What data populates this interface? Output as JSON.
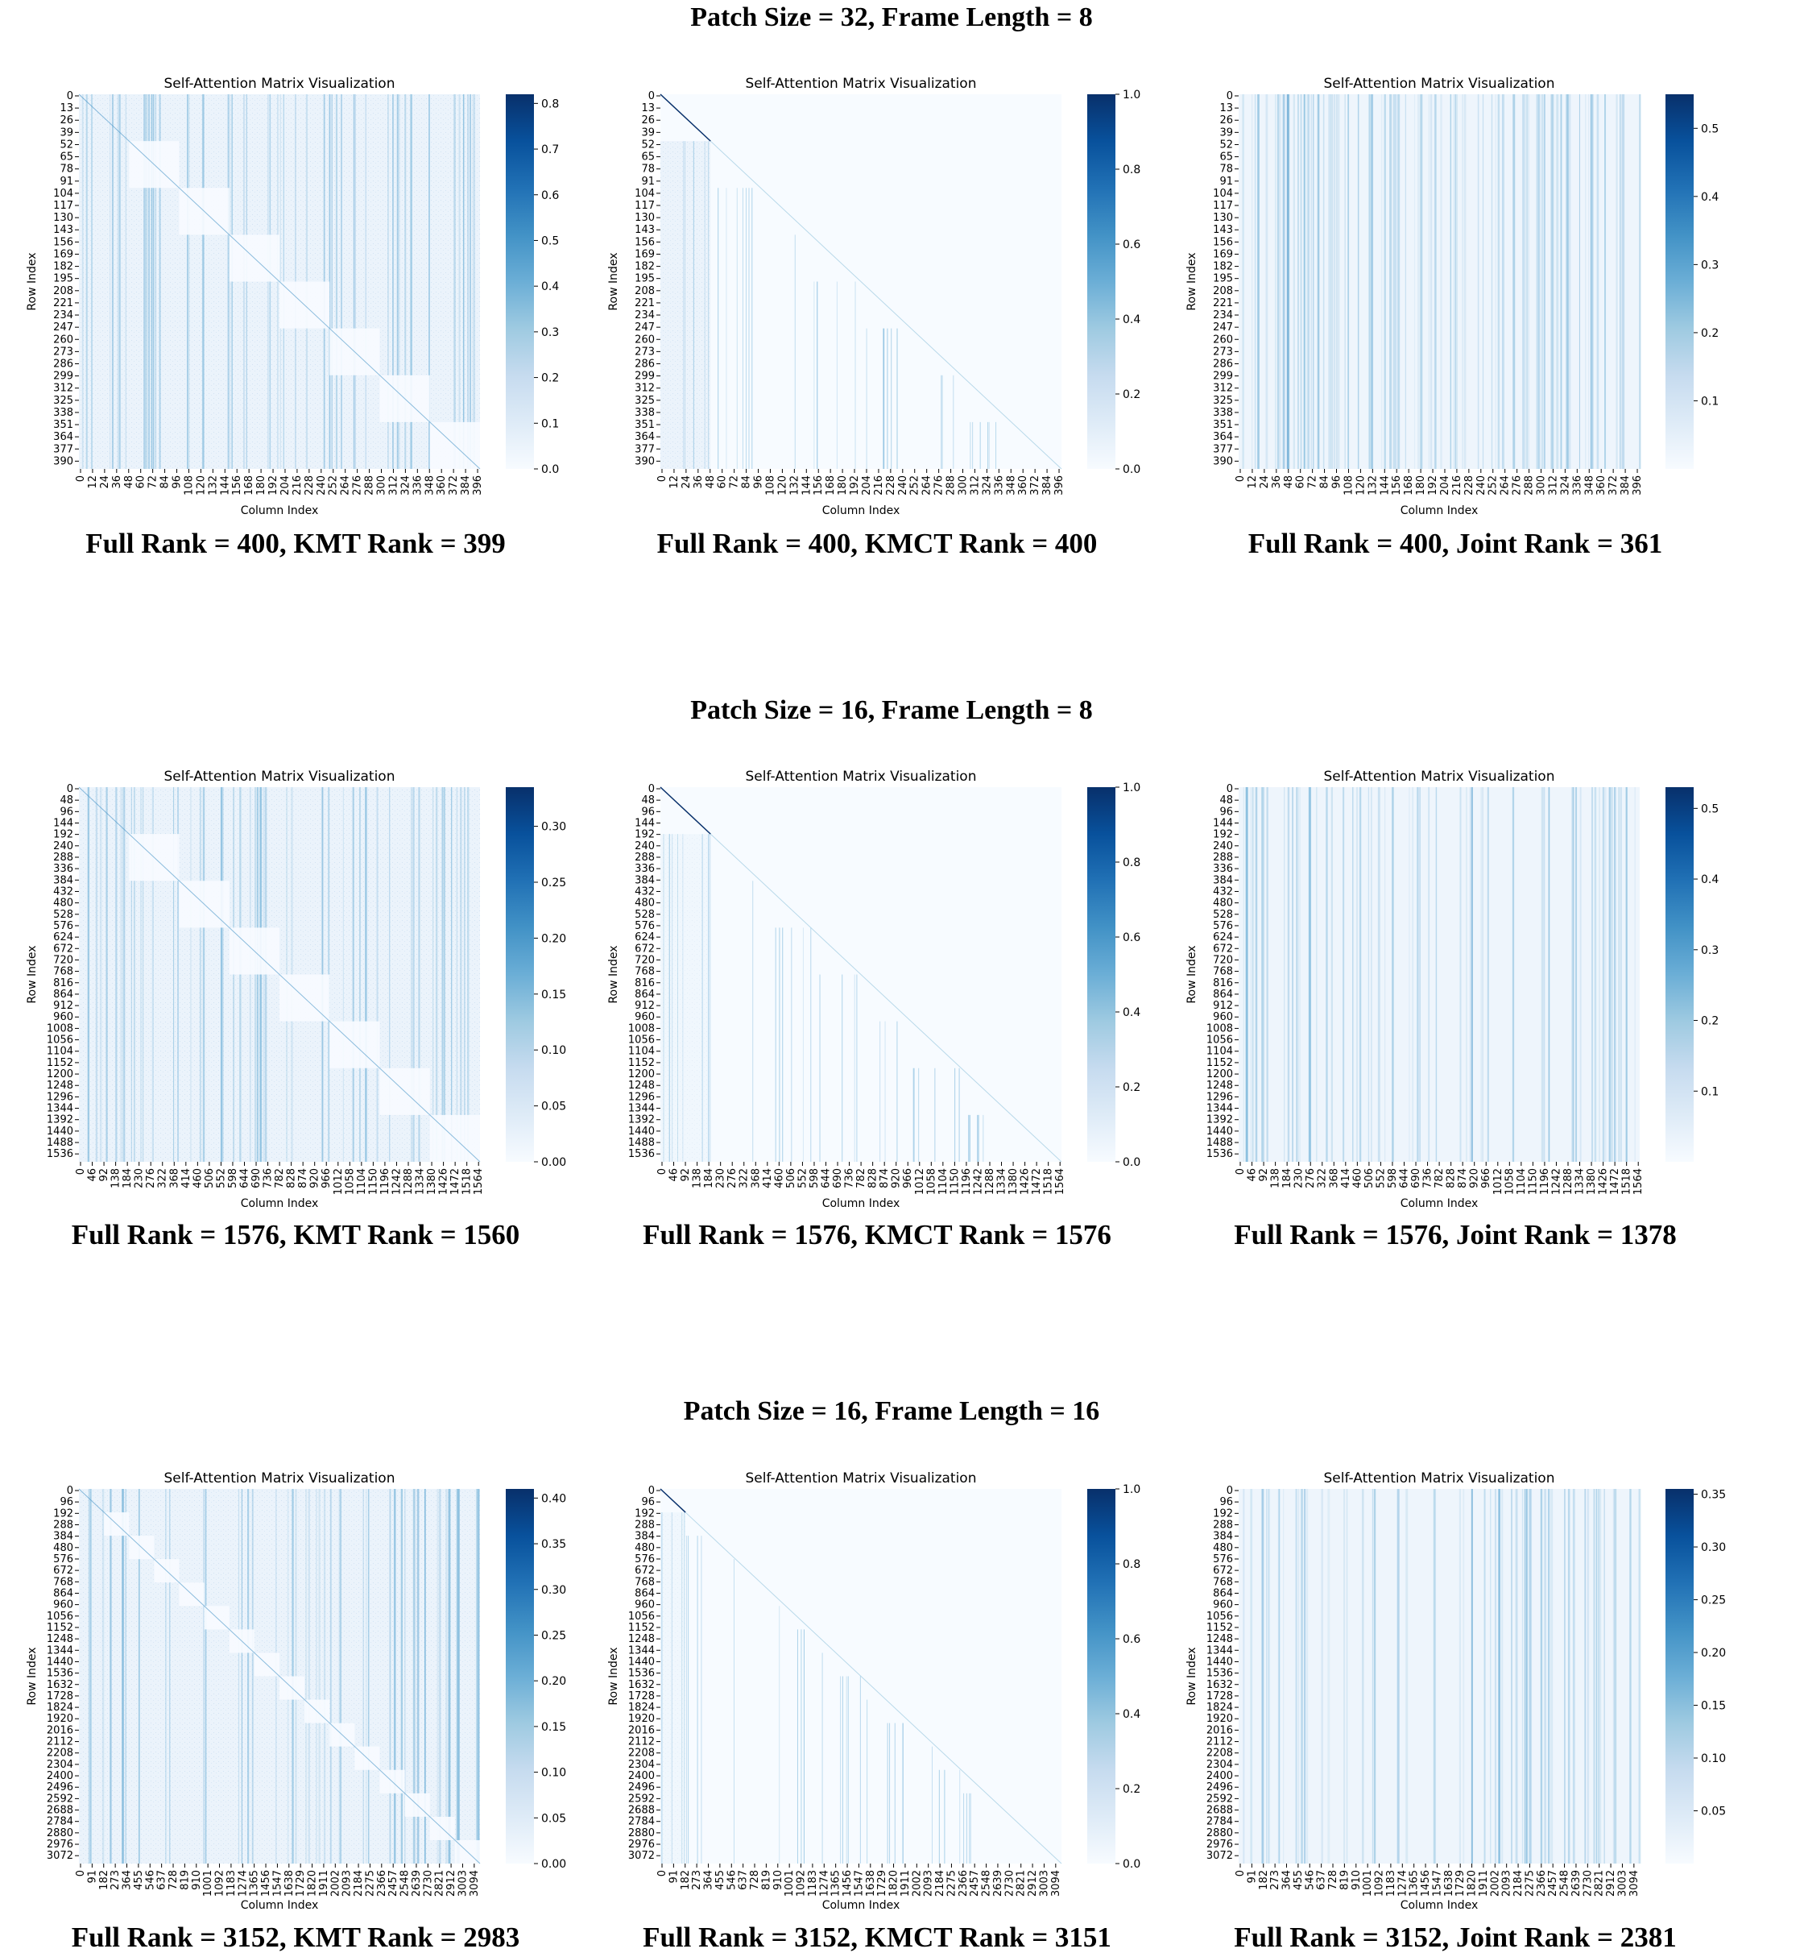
{
  "row_titles": [
    "Patch Size = 32, Frame Length = 8",
    "Patch Size = 16, Frame Length = 8",
    "Patch Size = 16, Frame Length = 16"
  ],
  "chart_data": [
    {
      "type": "heatmap",
      "row": 0,
      "col": 0,
      "pattern": "kmt",
      "n": 400,
      "title": "Self-Attention Matrix Visualization",
      "xlabel": "Column Index",
      "ylabel": "Row Index",
      "caption": "Full Rank = 400, KMT Rank = 399",
      "colorbar": {
        "min": 0,
        "max": 0.82,
        "ticks": [
          "0.0",
          "0.1",
          "0.2",
          "0.3",
          "0.4",
          "0.5",
          "0.6",
          "0.7",
          "0.8"
        ],
        "tick_values": [
          0,
          0.1,
          0.2,
          0.3,
          0.4,
          0.5,
          0.6,
          0.7,
          0.8
        ]
      },
      "yticks": [
        "0",
        "13",
        "26",
        "39",
        "52",
        "65",
        "78",
        "91",
        "104",
        "117",
        "130",
        "143",
        "156",
        "169",
        "182",
        "195",
        "208",
        "221",
        "234",
        "247",
        "260",
        "273",
        "286",
        "299",
        "312",
        "325",
        "338",
        "351",
        "364",
        "377",
        "390"
      ],
      "xticks": [
        "0",
        "12",
        "24",
        "36",
        "48",
        "60",
        "72",
        "84",
        "96",
        "108",
        "120",
        "132",
        "144",
        "156",
        "168",
        "180",
        "192",
        "204",
        "216",
        "228",
        "240",
        "252",
        "264",
        "276",
        "288",
        "300",
        "312",
        "324",
        "336",
        "348",
        "360",
        "372",
        "384",
        "396"
      ]
    },
    {
      "type": "heatmap",
      "row": 0,
      "col": 1,
      "pattern": "kmct",
      "n": 400,
      "title": "Self-Attention Matrix Visualization",
      "xlabel": "Column Index",
      "ylabel": "Row Index",
      "caption": "Full Rank = 400, KMCT Rank = 400",
      "colorbar": {
        "min": 0,
        "max": 1.0,
        "ticks": [
          "0.0",
          "0.2",
          "0.4",
          "0.6",
          "0.8",
          "1.0"
        ],
        "tick_values": [
          0,
          0.2,
          0.4,
          0.6,
          0.8,
          1.0
        ]
      },
      "yticks": [
        "0",
        "13",
        "26",
        "39",
        "52",
        "65",
        "78",
        "91",
        "104",
        "117",
        "130",
        "143",
        "156",
        "169",
        "182",
        "195",
        "208",
        "221",
        "234",
        "247",
        "260",
        "273",
        "286",
        "299",
        "312",
        "325",
        "338",
        "351",
        "364",
        "377",
        "390"
      ],
      "xticks": [
        "0",
        "12",
        "24",
        "36",
        "48",
        "60",
        "72",
        "84",
        "96",
        "108",
        "120",
        "132",
        "144",
        "156",
        "168",
        "180",
        "192",
        "204",
        "216",
        "228",
        "240",
        "252",
        "264",
        "276",
        "288",
        "300",
        "312",
        "324",
        "336",
        "348",
        "360",
        "372",
        "384",
        "396"
      ]
    },
    {
      "type": "heatmap",
      "row": 0,
      "col": 2,
      "pattern": "joint",
      "n": 400,
      "title": "Self-Attention Matrix Visualization",
      "xlabel": "Column Index",
      "ylabel": "Row Index",
      "caption": "Full Rank = 400, Joint Rank = 361",
      "colorbar": {
        "min": 0,
        "max": 0.55,
        "ticks": [
          "0.1",
          "0.2",
          "0.3",
          "0.4",
          "0.5"
        ],
        "tick_values": [
          0.1,
          0.2,
          0.3,
          0.4,
          0.5
        ]
      },
      "yticks": [
        "0",
        "13",
        "26",
        "39",
        "52",
        "65",
        "78",
        "91",
        "104",
        "117",
        "130",
        "143",
        "156",
        "169",
        "182",
        "195",
        "208",
        "221",
        "234",
        "247",
        "260",
        "273",
        "286",
        "299",
        "312",
        "325",
        "338",
        "351",
        "364",
        "377",
        "390"
      ],
      "xticks": [
        "0",
        "12",
        "24",
        "36",
        "48",
        "60",
        "72",
        "84",
        "96",
        "108",
        "120",
        "132",
        "144",
        "156",
        "168",
        "180",
        "192",
        "204",
        "216",
        "228",
        "240",
        "252",
        "264",
        "276",
        "288",
        "300",
        "312",
        "324",
        "336",
        "348",
        "360",
        "372",
        "384",
        "396"
      ]
    },
    {
      "type": "heatmap",
      "row": 1,
      "col": 0,
      "pattern": "kmt",
      "n": 1576,
      "title": "Self-Attention Matrix Visualization",
      "xlabel": "Column Index",
      "ylabel": "Row Index",
      "caption": "Full Rank = 1576, KMT Rank = 1560",
      "colorbar": {
        "min": 0,
        "max": 0.335,
        "ticks": [
          "0.00",
          "0.05",
          "0.10",
          "0.15",
          "0.20",
          "0.25",
          "0.30"
        ],
        "tick_values": [
          0,
          0.05,
          0.1,
          0.15,
          0.2,
          0.25,
          0.3
        ]
      },
      "yticks": [
        "0",
        "48",
        "96",
        "144",
        "192",
        "240",
        "288",
        "336",
        "384",
        "432",
        "480",
        "528",
        "576",
        "624",
        "672",
        "720",
        "768",
        "816",
        "864",
        "912",
        "960",
        "1008",
        "1056",
        "1104",
        "1152",
        "1200",
        "1248",
        "1296",
        "1344",
        "1392",
        "1440",
        "1488",
        "1536"
      ],
      "xticks": [
        "0",
        "46",
        "92",
        "138",
        "184",
        "230",
        "276",
        "322",
        "368",
        "414",
        "460",
        "506",
        "552",
        "598",
        "644",
        "690",
        "736",
        "782",
        "828",
        "874",
        "920",
        "966",
        "1012",
        "1058",
        "1104",
        "1150",
        "1196",
        "1242",
        "1288",
        "1334",
        "1380",
        "1426",
        "1472",
        "1518",
        "1564"
      ]
    },
    {
      "type": "heatmap",
      "row": 1,
      "col": 1,
      "pattern": "kmct",
      "n": 1576,
      "title": "Self-Attention Matrix Visualization",
      "xlabel": "Column Index",
      "ylabel": "Row Index",
      "caption": "Full Rank = 1576, KMCT Rank = 1576",
      "colorbar": {
        "min": 0,
        "max": 1.0,
        "ticks": [
          "0.0",
          "0.2",
          "0.4",
          "0.6",
          "0.8",
          "1.0"
        ],
        "tick_values": [
          0,
          0.2,
          0.4,
          0.6,
          0.8,
          1.0
        ]
      },
      "yticks": [
        "0",
        "48",
        "96",
        "144",
        "192",
        "240",
        "288",
        "336",
        "384",
        "432",
        "480",
        "528",
        "576",
        "624",
        "672",
        "720",
        "768",
        "816",
        "864",
        "912",
        "960",
        "1008",
        "1056",
        "1104",
        "1152",
        "1200",
        "1248",
        "1296",
        "1344",
        "1392",
        "1440",
        "1488",
        "1536"
      ],
      "xticks": [
        "0",
        "46",
        "92",
        "138",
        "184",
        "230",
        "276",
        "322",
        "368",
        "414",
        "460",
        "506",
        "552",
        "598",
        "644",
        "690",
        "736",
        "782",
        "828",
        "874",
        "920",
        "966",
        "1012",
        "1058",
        "1104",
        "1150",
        "1196",
        "1242",
        "1288",
        "1334",
        "1380",
        "1426",
        "1472",
        "1518",
        "1564"
      ]
    },
    {
      "type": "heatmap",
      "row": 1,
      "col": 2,
      "pattern": "joint",
      "n": 1576,
      "title": "Self-Attention Matrix Visualization",
      "xlabel": "Column Index",
      "ylabel": "Row Index",
      "caption": "Full Rank = 1576, Joint Rank = 1378",
      "colorbar": {
        "min": 0,
        "max": 0.53,
        "ticks": [
          "0.1",
          "0.2",
          "0.3",
          "0.4",
          "0.5"
        ],
        "tick_values": [
          0.1,
          0.2,
          0.3,
          0.4,
          0.5
        ]
      },
      "yticks": [
        "0",
        "48",
        "96",
        "144",
        "192",
        "240",
        "288",
        "336",
        "384",
        "432",
        "480",
        "528",
        "576",
        "624",
        "672",
        "720",
        "768",
        "816",
        "864",
        "912",
        "960",
        "1008",
        "1056",
        "1104",
        "1152",
        "1200",
        "1248",
        "1296",
        "1344",
        "1392",
        "1440",
        "1488",
        "1536"
      ],
      "xticks": [
        "0",
        "46",
        "92",
        "138",
        "184",
        "230",
        "276",
        "322",
        "368",
        "414",
        "460",
        "506",
        "552",
        "598",
        "644",
        "690",
        "736",
        "782",
        "828",
        "874",
        "920",
        "966",
        "1012",
        "1058",
        "1104",
        "1150",
        "1196",
        "1242",
        "1288",
        "1334",
        "1380",
        "1426",
        "1472",
        "1518",
        "1564"
      ]
    },
    {
      "type": "heatmap",
      "row": 2,
      "col": 0,
      "pattern": "kmt",
      "n": 3152,
      "title": "Self-Attention Matrix Visualization",
      "xlabel": "Column Index",
      "ylabel": "Row Index",
      "caption": "Full Rank = 3152, KMT Rank = 2983",
      "colorbar": {
        "min": 0,
        "max": 0.41,
        "ticks": [
          "0.00",
          "0.05",
          "0.10",
          "0.15",
          "0.20",
          "0.25",
          "0.30",
          "0.35",
          "0.40"
        ],
        "tick_values": [
          0,
          0.05,
          0.1,
          0.15,
          0.2,
          0.25,
          0.3,
          0.35,
          0.4
        ]
      },
      "yticks": [
        "0",
        "96",
        "192",
        "288",
        "384",
        "480",
        "576",
        "672",
        "768",
        "864",
        "960",
        "1056",
        "1152",
        "1248",
        "1344",
        "1440",
        "1536",
        "1632",
        "1728",
        "1824",
        "1920",
        "2016",
        "2112",
        "2208",
        "2304",
        "2400",
        "2496",
        "2592",
        "2688",
        "2784",
        "2880",
        "2976",
        "3072"
      ],
      "xticks": [
        "0",
        "91",
        "182",
        "273",
        "364",
        "455",
        "546",
        "637",
        "728",
        "819",
        "910",
        "1001",
        "1092",
        "1183",
        "1274",
        "1365",
        "1456",
        "1547",
        "1638",
        "1729",
        "1820",
        "1911",
        "2002",
        "2093",
        "2184",
        "2275",
        "2366",
        "2457",
        "2548",
        "2639",
        "2730",
        "2821",
        "2912",
        "3003",
        "3094"
      ]
    },
    {
      "type": "heatmap",
      "row": 2,
      "col": 1,
      "pattern": "kmct",
      "n": 3152,
      "title": "Self-Attention Matrix Visualization",
      "xlabel": "Column Index",
      "ylabel": "Row Index",
      "caption": "Full Rank = 3152, KMCT Rank = 3151",
      "colorbar": {
        "min": 0,
        "max": 1.0,
        "ticks": [
          "0.0",
          "0.2",
          "0.4",
          "0.6",
          "0.8",
          "1.0"
        ],
        "tick_values": [
          0,
          0.2,
          0.4,
          0.6,
          0.8,
          1.0
        ]
      },
      "yticks": [
        "0",
        "96",
        "192",
        "288",
        "384",
        "480",
        "576",
        "672",
        "768",
        "864",
        "960",
        "1056",
        "1152",
        "1248",
        "1344",
        "1440",
        "1536",
        "1632",
        "1728",
        "1824",
        "1920",
        "2016",
        "2112",
        "2208",
        "2304",
        "2400",
        "2496",
        "2592",
        "2688",
        "2784",
        "2880",
        "2976",
        "3072"
      ],
      "xticks": [
        "0",
        "91",
        "182",
        "273",
        "364",
        "455",
        "546",
        "637",
        "728",
        "819",
        "910",
        "1001",
        "1092",
        "1183",
        "1274",
        "1365",
        "1456",
        "1547",
        "1638",
        "1729",
        "1820",
        "1911",
        "2002",
        "2093",
        "2184",
        "2275",
        "2366",
        "2457",
        "2548",
        "2639",
        "2730",
        "2821",
        "2912",
        "3003",
        "3094"
      ]
    },
    {
      "type": "heatmap",
      "row": 2,
      "col": 2,
      "pattern": "joint",
      "n": 3152,
      "title": "Self-Attention Matrix Visualization",
      "xlabel": "Column Index",
      "ylabel": "Row Index",
      "caption": "Full Rank = 3152, Joint Rank = 2381",
      "colorbar": {
        "min": 0,
        "max": 0.355,
        "ticks": [
          "0.05",
          "0.10",
          "0.15",
          "0.20",
          "0.25",
          "0.30",
          "0.35"
        ],
        "tick_values": [
          0.05,
          0.1,
          0.15,
          0.2,
          0.25,
          0.3,
          0.35
        ]
      },
      "yticks": [
        "0",
        "96",
        "192",
        "288",
        "384",
        "480",
        "576",
        "672",
        "768",
        "864",
        "960",
        "1056",
        "1152",
        "1248",
        "1344",
        "1440",
        "1536",
        "1632",
        "1728",
        "1824",
        "1920",
        "2016",
        "2112",
        "2208",
        "2304",
        "2400",
        "2496",
        "2592",
        "2688",
        "2784",
        "2880",
        "2976",
        "3072"
      ],
      "xticks": [
        "0",
        "91",
        "182",
        "273",
        "364",
        "455",
        "546",
        "637",
        "728",
        "819",
        "910",
        "1001",
        "1092",
        "1183",
        "1274",
        "1365",
        "1456",
        "1547",
        "1638",
        "1729",
        "1820",
        "1911",
        "2002",
        "2093",
        "2184",
        "2275",
        "2366",
        "2457",
        "2548",
        "2639",
        "2730",
        "2821",
        "2912",
        "3003",
        "3094"
      ]
    }
  ],
  "colors": {
    "light": "#f7fbff",
    "dark": "#08306b",
    "cell": "#dbe9f6",
    "line": "#6baed6"
  }
}
